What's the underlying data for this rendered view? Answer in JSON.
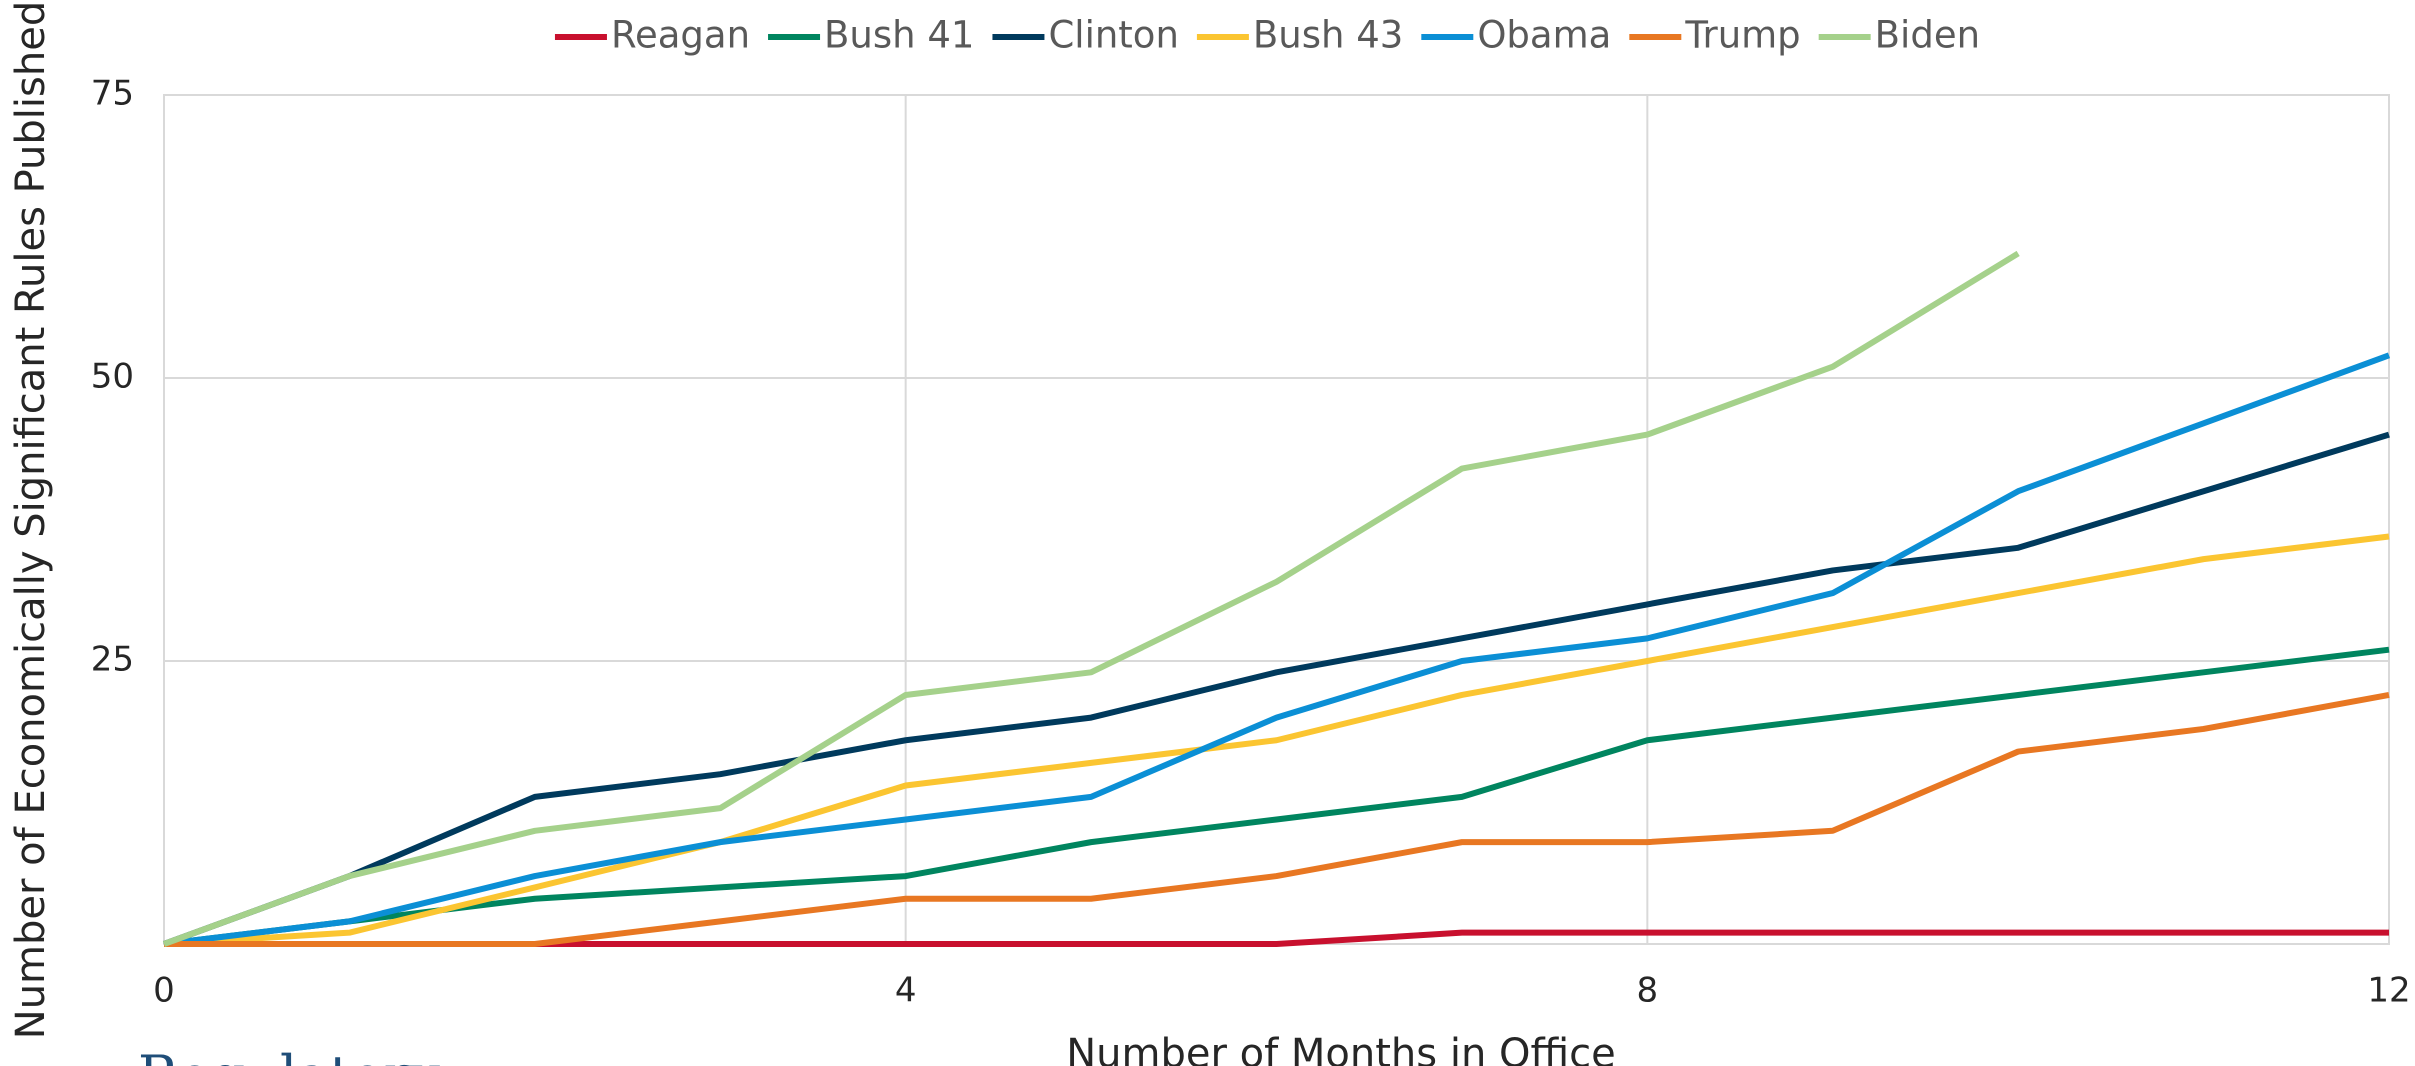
{
  "chart_data": {
    "type": "line",
    "x_label": "Number of Months in Office",
    "y_label": "Number of Economically Significant Rules Published",
    "footer": "Regulatory",
    "x": [
      0,
      1,
      2,
      3,
      4,
      5,
      6,
      7,
      8,
      9,
      10,
      11,
      12
    ],
    "xlim": [
      0,
      12
    ],
    "xticks": [
      0,
      4,
      8,
      12
    ],
    "ylim": [
      0,
      75
    ],
    "yticks": [
      25,
      50,
      75
    ],
    "grid": true,
    "legend": "top",
    "series": [
      {
        "name": "Reagan",
        "color": "#c8102e",
        "values": [
          0,
          0,
          0,
          0,
          0,
          0,
          0,
          1,
          1,
          1,
          1,
          1,
          1
        ]
      },
      {
        "name": "Bush 41",
        "color": "#00855f",
        "values": [
          0,
          2,
          4,
          5,
          6,
          9,
          11,
          13,
          18,
          20,
          22,
          24,
          26
        ]
      },
      {
        "name": "Clinton",
        "color": "#003a5d",
        "values": [
          0,
          6,
          13,
          15,
          18,
          20,
          24,
          27,
          30,
          33,
          35,
          40,
          45
        ]
      },
      {
        "name": "Bush 43",
        "color": "#fbc531",
        "values": [
          0,
          1,
          5,
          9,
          14,
          16,
          18,
          22,
          25,
          28,
          31,
          34,
          36
        ]
      },
      {
        "name": "Obama",
        "color": "#0b8fd5",
        "values": [
          0,
          2,
          6,
          9,
          11,
          13,
          20,
          25,
          27,
          31,
          40,
          46,
          52
        ]
      },
      {
        "name": "Trump",
        "color": "#e87722",
        "values": [
          0,
          0,
          0,
          2,
          4,
          4,
          6,
          9,
          9,
          10,
          17,
          19,
          22
        ]
      },
      {
        "name": "Biden",
        "color": "#a5d18b",
        "values": [
          0,
          6,
          10,
          12,
          22,
          24,
          32,
          42,
          45,
          51,
          61,
          null,
          null
        ]
      }
    ]
  }
}
